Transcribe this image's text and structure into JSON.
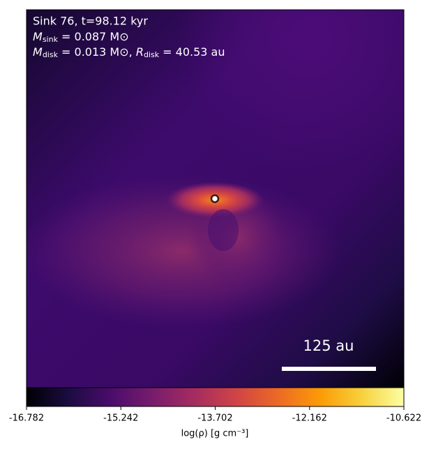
{
  "chart_data": {
    "type": "heatmap",
    "annotations": [
      {
        "text": "Sink 76, t=98.12 kyr"
      },
      {
        "main": "M",
        "sub": "sink",
        "rest": " = 0.087 M⊙"
      },
      {
        "main": "M",
        "sub": "disk",
        "rest": " = 0.013 M⊙, ",
        "main2": "R",
        "sub2": "disk",
        "rest2": " = 40.53 au"
      }
    ],
    "scale_bar_label": "125 au",
    "colorbar": {
      "label": "log(ρ) [g cm⁻³]",
      "colormap": "inferno",
      "lim": [
        -16.782,
        -10.622
      ],
      "ticks": [
        -16.782,
        -15.242,
        -13.702,
        -12.162,
        -10.622
      ]
    }
  }
}
